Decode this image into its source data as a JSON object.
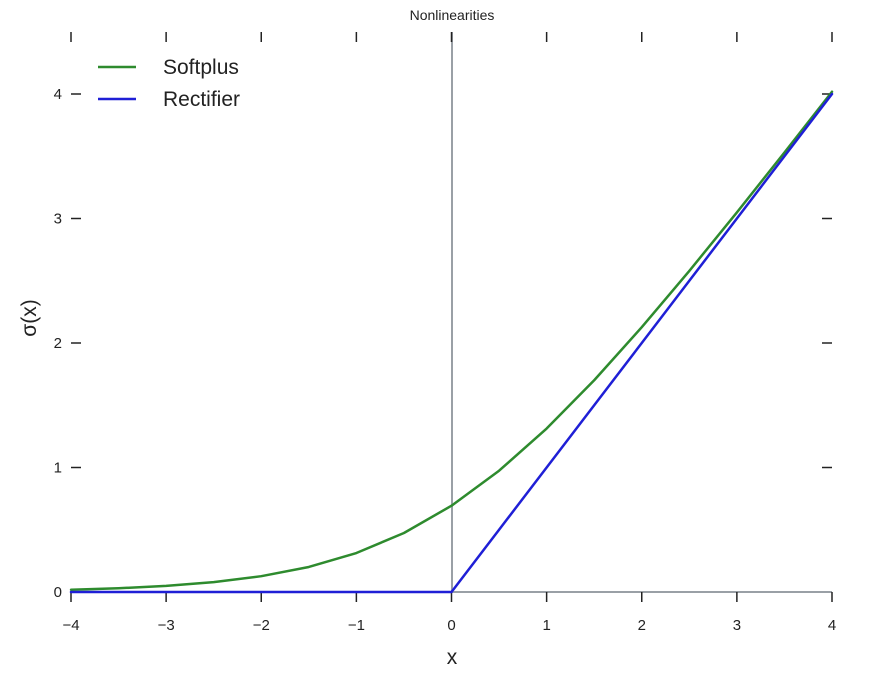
{
  "chart_data": {
    "type": "line",
    "title": "Nonlinearities",
    "xlabel": "x",
    "ylabel": "σ(x)",
    "xlim": [
      -4,
      4
    ],
    "ylim": [
      0,
      4.35
    ],
    "xticks": [
      -4,
      -3,
      -2,
      -1,
      0,
      1,
      2,
      3,
      4
    ],
    "xtick_labels": [
      "−4",
      "−3",
      "−2",
      "−1",
      "0",
      "1",
      "2",
      "3",
      "4"
    ],
    "yticks": [
      0,
      1,
      2,
      3,
      4
    ],
    "ytick_labels": [
      "0",
      "1",
      "2",
      "3",
      "4"
    ],
    "grid": false,
    "legend_position": "top-left",
    "x": [
      -4,
      -3.5,
      -3,
      -2.5,
      -2,
      -1.5,
      -1,
      -0.5,
      0,
      0.5,
      1,
      1.5,
      2,
      2.5,
      3,
      3.5,
      4
    ],
    "series": [
      {
        "name": "Softplus",
        "color": "#2e8b2e",
        "values": [
          0.018,
          0.03,
          0.049,
          0.079,
          0.127,
          0.201,
          0.313,
          0.474,
          0.693,
          0.974,
          1.313,
          1.701,
          2.127,
          2.579,
          3.049,
          3.53,
          4.018
        ]
      },
      {
        "name": "Rectifier",
        "color": "#1f1fd6",
        "values": [
          0,
          0,
          0,
          0,
          0,
          0,
          0,
          0,
          0,
          0.5,
          1,
          1.5,
          2,
          2.5,
          3,
          3.5,
          4
        ]
      }
    ]
  }
}
